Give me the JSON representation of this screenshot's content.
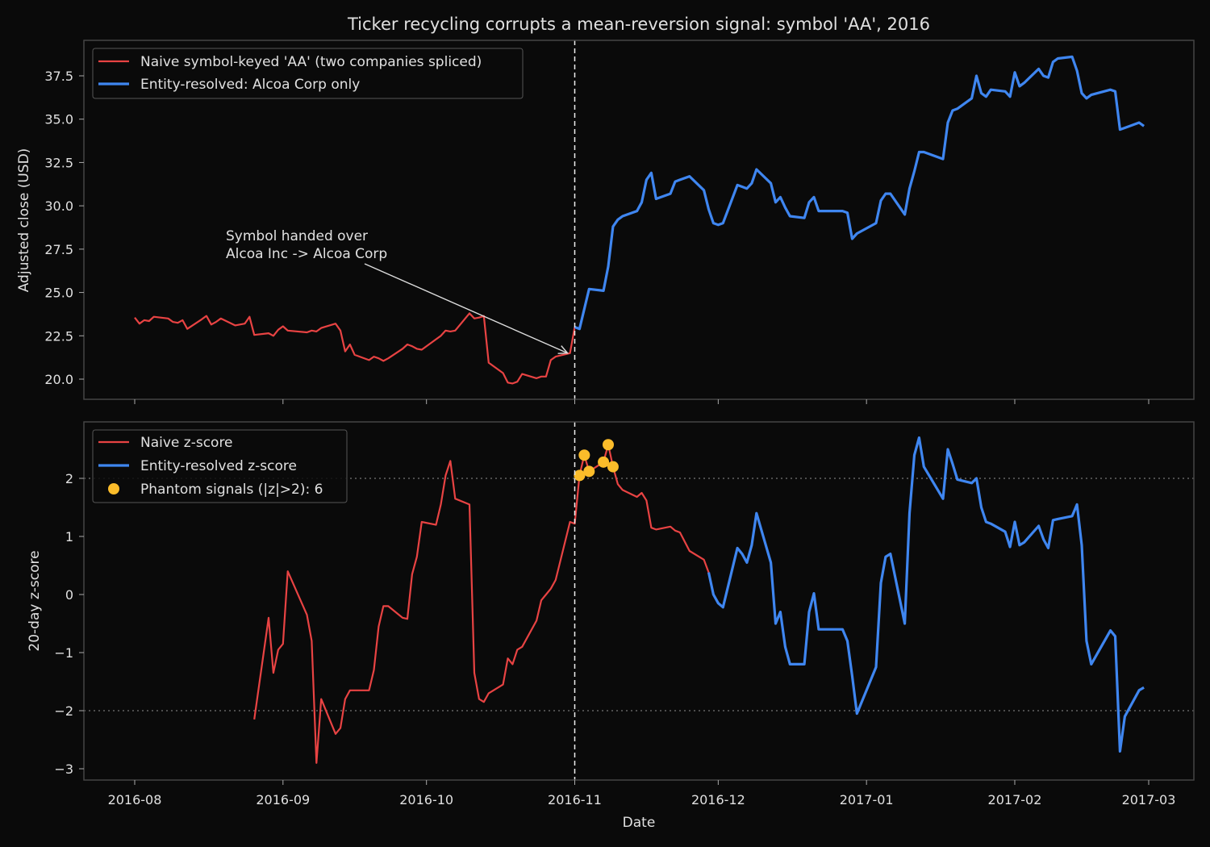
{
  "chart_data": {
    "title": "Ticker recycling corrupts a mean-reversion signal: symbol 'AA', 2016",
    "xlabel": "Date",
    "x_ticks": [
      "2016-08",
      "2016-09",
      "2016-10",
      "2016-11",
      "2016-12",
      "2017-01",
      "2017-02",
      "2017-03"
    ],
    "handover_date": "2016-11-01",
    "panels": [
      {
        "type": "line",
        "ylabel": "Adjusted close (USD)",
        "ylim": [
          18.9,
          39.4
        ],
        "y_ticks": [
          "20.0",
          "22.5",
          "25.0",
          "27.5",
          "30.0",
          "32.5",
          "35.0",
          "37.5"
        ],
        "legend_position": "top-left",
        "annotation": {
          "lines": [
            "Symbol handed over",
            "Alcoa Inc -> Alcoa Corp"
          ],
          "text_at": [
            "2016-08-21",
            27.0
          ],
          "points_to": [
            "2016-10-31",
            21.5
          ]
        },
        "series": [
          {
            "name": "Naive symbol-keyed 'AA' (two companies spliced)",
            "color": "#e84343",
            "x": [
              "2016-08-01",
              "2016-08-02",
              "2016-08-03",
              "2016-08-04",
              "2016-08-05",
              "2016-08-08",
              "2016-08-09",
              "2016-08-10",
              "2016-08-11",
              "2016-08-12",
              "2016-08-15",
              "2016-08-16",
              "2016-08-17",
              "2016-08-18",
              "2016-08-19",
              "2016-08-22",
              "2016-08-23",
              "2016-08-24",
              "2016-08-25",
              "2016-08-26",
              "2016-08-29",
              "2016-08-30",
              "2016-08-31",
              "2016-09-01",
              "2016-09-02",
              "2016-09-06",
              "2016-09-07",
              "2016-09-08",
              "2016-09-09",
              "2016-09-12",
              "2016-09-13",
              "2016-09-14",
              "2016-09-15",
              "2016-09-16",
              "2016-09-19",
              "2016-09-20",
              "2016-09-21",
              "2016-09-22",
              "2016-09-23",
              "2016-09-26",
              "2016-09-27",
              "2016-09-28",
              "2016-09-29",
              "2016-09-30",
              "2016-10-03",
              "2016-10-04",
              "2016-10-05",
              "2016-10-06",
              "2016-10-07",
              "2016-10-10",
              "2016-10-11",
              "2016-10-12",
              "2016-10-13",
              "2016-10-14",
              "2016-10-17",
              "2016-10-18",
              "2016-10-19",
              "2016-10-20",
              "2016-10-21",
              "2016-10-24",
              "2016-10-25",
              "2016-10-26",
              "2016-10-27",
              "2016-10-28",
              "2016-10-31",
              "2016-11-01"
            ],
            "values": [
              23.55,
              23.2,
              23.4,
              23.35,
              23.6,
              23.5,
              23.3,
              23.25,
              23.4,
              22.9,
              23.45,
              23.65,
              23.15,
              23.3,
              23.5,
              23.1,
              23.15,
              23.2,
              23.6,
              22.55,
              22.65,
              22.5,
              22.85,
              23.05,
              22.8,
              22.7,
              22.8,
              22.75,
              22.95,
              23.2,
              22.8,
              21.6,
              22.0,
              21.4,
              21.1,
              21.3,
              21.2,
              21.05,
              21.2,
              21.75,
              22.0,
              21.9,
              21.75,
              21.7,
              22.3,
              22.5,
              22.8,
              22.75,
              22.8,
              23.8,
              23.5,
              23.55,
              23.65,
              20.95,
              20.35,
              19.8,
              19.75,
              19.85,
              20.3,
              20.05,
              20.15,
              20.15,
              21.1,
              21.3,
              21.5,
              23.0
            ]
          },
          {
            "name": "Entity-resolved: Alcoa Corp only",
            "color": "#3f86f0",
            "x": [
              "2016-11-01",
              "2016-11-02",
              "2016-11-04",
              "2016-11-07",
              "2016-11-08",
              "2016-11-09",
              "2016-11-10",
              "2016-11-11",
              "2016-11-14",
              "2016-11-15",
              "2016-11-16",
              "2016-11-17",
              "2016-11-18",
              "2016-11-21",
              "2016-11-22",
              "2016-11-23",
              "2016-11-25",
              "2016-11-28",
              "2016-11-29",
              "2016-11-30",
              "2016-12-01",
              "2016-12-02",
              "2016-12-05",
              "2016-12-06",
              "2016-12-07",
              "2016-12-08",
              "2016-12-09",
              "2016-12-12",
              "2016-12-13",
              "2016-12-14",
              "2016-12-15",
              "2016-12-16",
              "2016-12-19",
              "2016-12-20",
              "2016-12-21",
              "2016-12-22",
              "2016-12-23",
              "2016-12-27",
              "2016-12-28",
              "2016-12-29",
              "2016-12-30",
              "2017-01-03",
              "2017-01-04",
              "2017-01-05",
              "2017-01-06",
              "2017-01-09",
              "2017-01-10",
              "2017-01-11",
              "2017-01-12",
              "2017-01-13",
              "2017-01-17",
              "2017-01-18",
              "2017-01-19",
              "2017-01-20",
              "2017-01-23",
              "2017-01-24",
              "2017-01-25",
              "2017-01-26",
              "2017-01-27",
              "2017-01-30",
              "2017-01-31",
              "2017-02-01",
              "2017-02-02",
              "2017-02-03",
              "2017-02-06",
              "2017-02-07",
              "2017-02-08",
              "2017-02-09",
              "2017-02-10",
              "2017-02-13",
              "2017-02-14",
              "2017-02-15",
              "2017-02-16",
              "2017-02-17",
              "2017-02-21",
              "2017-02-22",
              "2017-02-23",
              "2017-02-24",
              "2017-02-27",
              "2017-02-28"
            ],
            "values": [
              23.0,
              22.9,
              25.2,
              25.1,
              26.5,
              28.8,
              29.2,
              29.4,
              29.7,
              30.2,
              31.5,
              31.9,
              30.4,
              30.7,
              31.4,
              31.5,
              31.7,
              30.9,
              29.8,
              29.0,
              28.9,
              29.0,
              31.2,
              31.1,
              31.0,
              31.3,
              32.1,
              31.3,
              30.2,
              30.5,
              29.9,
              29.4,
              29.3,
              30.2,
              30.5,
              29.7,
              29.7,
              29.7,
              29.6,
              28.1,
              28.4,
              29.0,
              30.3,
              30.7,
              30.7,
              29.5,
              31.0,
              32.0,
              33.1,
              33.1,
              32.7,
              34.8,
              35.5,
              35.6,
              36.2,
              37.5,
              36.5,
              36.3,
              36.7,
              36.6,
              36.3,
              37.7,
              36.9,
              37.1,
              37.9,
              37.5,
              37.4,
              38.3,
              38.5,
              38.6,
              37.8,
              36.5,
              36.2,
              36.4,
              36.7,
              36.6,
              34.4,
              34.5,
              34.8,
              34.6
            ]
          }
        ]
      },
      {
        "type": "line",
        "ylabel": "20-day z-score",
        "ylim": [
          -3.2,
          2.9
        ],
        "y_ticks": [
          "−3",
          "−2",
          "−1",
          "0",
          "1",
          "2"
        ],
        "reference_lines": [
          -2,
          2
        ],
        "legend_position": "top-left",
        "series": [
          {
            "name": "Naive z-score",
            "color": "#e84343",
            "x": [
              "2016-08-26",
              "2016-08-29",
              "2016-08-30",
              "2016-08-31",
              "2016-09-01",
              "2016-09-02",
              "2016-09-06",
              "2016-09-07",
              "2016-09-08",
              "2016-09-09",
              "2016-09-12",
              "2016-09-13",
              "2016-09-14",
              "2016-09-15",
              "2016-09-16",
              "2016-09-19",
              "2016-09-20",
              "2016-09-21",
              "2016-09-22",
              "2016-09-23",
              "2016-09-26",
              "2016-09-27",
              "2016-09-28",
              "2016-09-29",
              "2016-09-30",
              "2016-10-03",
              "2016-10-04",
              "2016-10-05",
              "2016-10-06",
              "2016-10-07",
              "2016-10-10",
              "2016-10-11",
              "2016-10-12",
              "2016-10-13",
              "2016-10-14",
              "2016-10-17",
              "2016-10-18",
              "2016-10-19",
              "2016-10-20",
              "2016-10-21",
              "2016-10-24",
              "2016-10-25",
              "2016-10-26",
              "2016-10-27",
              "2016-10-28",
              "2016-10-31",
              "2016-11-01",
              "2016-11-02",
              "2016-11-03",
              "2016-11-04",
              "2016-11-07",
              "2016-11-08",
              "2016-11-09",
              "2016-11-10",
              "2016-11-11",
              "2016-11-14",
              "2016-11-15",
              "2016-11-16",
              "2016-11-17",
              "2016-11-18",
              "2016-11-21",
              "2016-11-22",
              "2016-11-23",
              "2016-11-25",
              "2016-11-28",
              "2016-11-29"
            ],
            "values": [
              -2.15,
              -0.4,
              -1.35,
              -0.95,
              -0.85,
              0.4,
              -0.35,
              -0.8,
              -2.9,
              -1.8,
              -2.4,
              -2.3,
              -1.8,
              -1.65,
              -1.65,
              -1.65,
              -1.3,
              -0.55,
              -0.2,
              -0.2,
              -0.4,
              -0.42,
              0.35,
              0.65,
              1.25,
              1.2,
              1.55,
              2.05,
              2.3,
              1.65,
              1.55,
              -1.35,
              -1.8,
              -1.85,
              -1.7,
              -1.55,
              -1.1,
              -1.2,
              -0.95,
              -0.9,
              -0.45,
              -0.1,
              0.0,
              0.1,
              0.25,
              1.25,
              1.22,
              2.05,
              2.4,
              2.12,
              2.28,
              2.58,
              2.2,
              1.9,
              1.8,
              1.68,
              1.75,
              1.62,
              1.15,
              1.12,
              1.17,
              1.1,
              1.07,
              0.75,
              0.6,
              0.38
            ]
          },
          {
            "name": "Entity-resolved z-score",
            "color": "#3f86f0",
            "x": [
              "2016-11-29",
              "2016-11-30",
              "2016-12-01",
              "2016-12-02",
              "2016-12-05",
              "2016-12-06",
              "2016-12-07",
              "2016-12-08",
              "2016-12-09",
              "2016-12-12",
              "2016-12-13",
              "2016-12-14",
              "2016-12-15",
              "2016-12-16",
              "2016-12-19",
              "2016-12-20",
              "2016-12-21",
              "2016-12-22",
              "2016-12-23",
              "2016-12-27",
              "2016-12-28",
              "2016-12-29",
              "2016-12-30",
              "2017-01-03",
              "2017-01-04",
              "2017-01-05",
              "2017-01-06",
              "2017-01-09",
              "2017-01-10",
              "2017-01-11",
              "2017-01-12",
              "2017-01-13",
              "2017-01-17",
              "2017-01-18",
              "2017-01-19",
              "2017-01-20",
              "2017-01-23",
              "2017-01-24",
              "2017-01-25",
              "2017-01-26",
              "2017-01-27",
              "2017-01-30",
              "2017-01-31",
              "2017-02-01",
              "2017-02-02",
              "2017-02-03",
              "2017-02-06",
              "2017-02-07",
              "2017-02-08",
              "2017-02-09",
              "2017-02-10",
              "2017-02-13",
              "2017-02-14",
              "2017-02-15",
              "2017-02-16",
              "2017-02-17",
              "2017-02-21",
              "2017-02-22",
              "2017-02-23",
              "2017-02-24",
              "2017-02-27",
              "2017-02-28"
            ],
            "values": [
              0.38,
              0.0,
              -0.15,
              -0.22,
              0.8,
              0.7,
              0.55,
              0.85,
              1.4,
              0.55,
              -0.5,
              -0.3,
              -0.9,
              -1.2,
              -1.2,
              -0.3,
              0.02,
              -0.6,
              -0.6,
              -0.6,
              -0.8,
              -1.4,
              -2.05,
              -1.25,
              0.2,
              0.65,
              0.7,
              -0.5,
              1.4,
              2.4,
              2.7,
              2.2,
              1.65,
              2.5,
              2.25,
              1.98,
              1.92,
              2.0,
              1.5,
              1.25,
              1.22,
              1.08,
              0.82,
              1.25,
              0.85,
              0.9,
              1.18,
              0.95,
              0.8,
              1.28,
              1.3,
              1.35,
              1.55,
              0.85,
              -0.8,
              -1.2,
              -0.62,
              -0.72,
              -2.7,
              -2.1,
              -1.65,
              -1.6
            ]
          },
          {
            "name": "Phantom signals (|z|>2): 6",
            "color": "#fbbc2a",
            "type": "scatter",
            "x": [
              "2016-11-02",
              "2016-11-03",
              "2016-11-04",
              "2016-11-07",
              "2016-11-08",
              "2016-11-09"
            ],
            "values": [
              2.05,
              2.4,
              2.12,
              2.28,
              2.58,
              2.2
            ]
          }
        ]
      }
    ]
  }
}
